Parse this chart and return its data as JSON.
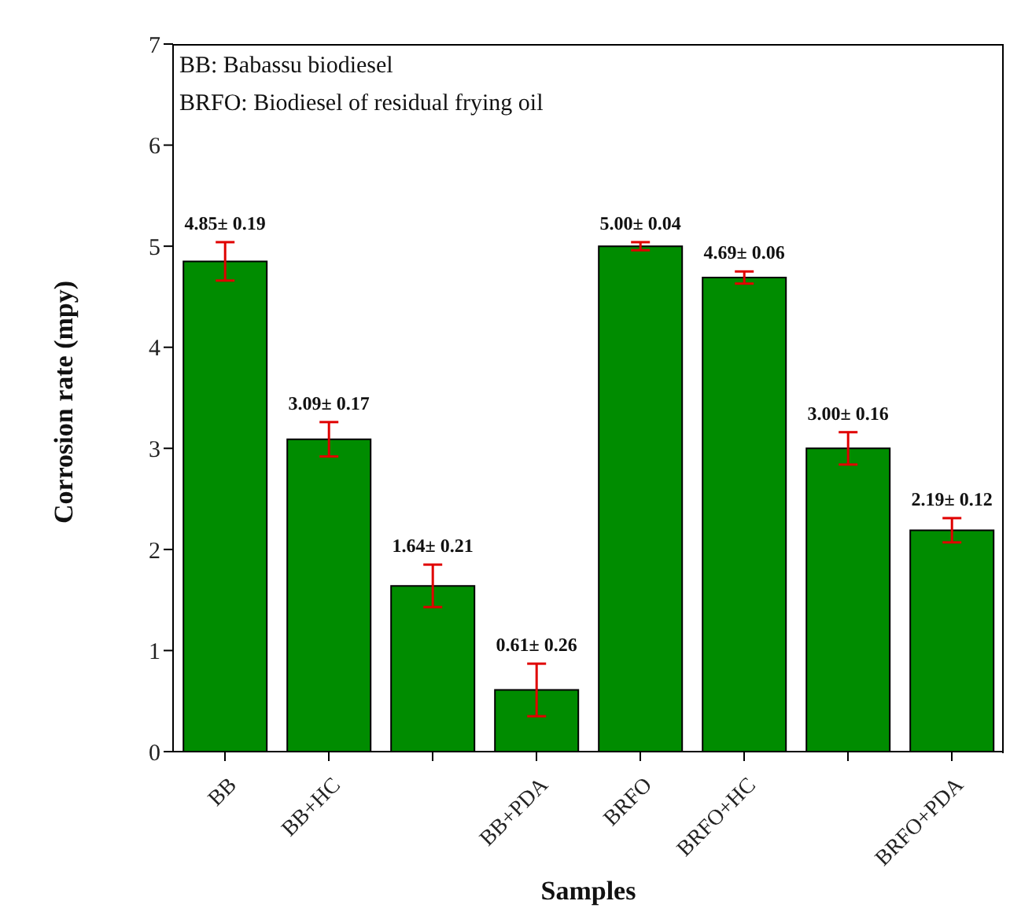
{
  "chart_data": {
    "type": "bar",
    "xlabel": "Samples",
    "ylabel": "Corrosion rate (mpy)",
    "categories": [
      "BB",
      "BB+HC",
      null,
      "BB+PDA",
      "BRFO",
      "BRFO+HC",
      null,
      "BRFO+PDA"
    ],
    "values": [
      4.85,
      3.09,
      1.64,
      0.61,
      5.0,
      4.69,
      3.0,
      2.19
    ],
    "errors": [
      0.19,
      0.17,
      0.21,
      0.26,
      0.04,
      0.06,
      0.16,
      0.12
    ],
    "value_labels": [
      "4.85± 0.19",
      "3.09± 0.17",
      "1.64± 0.21",
      "0.61± 0.26",
      "5.00± 0.04",
      "4.69± 0.06",
      "3.00± 0.16",
      "2.19± 0.12"
    ],
    "color": "#008c00",
    "ylim": [
      0,
      7
    ],
    "yticks": [
      0,
      1,
      2,
      3,
      4,
      5,
      6,
      7
    ],
    "grid": false,
    "legend": false,
    "annotations": [
      "BB: Babassu biodiesel",
      "BRFO: Biodiesel of residual frying oil"
    ]
  }
}
